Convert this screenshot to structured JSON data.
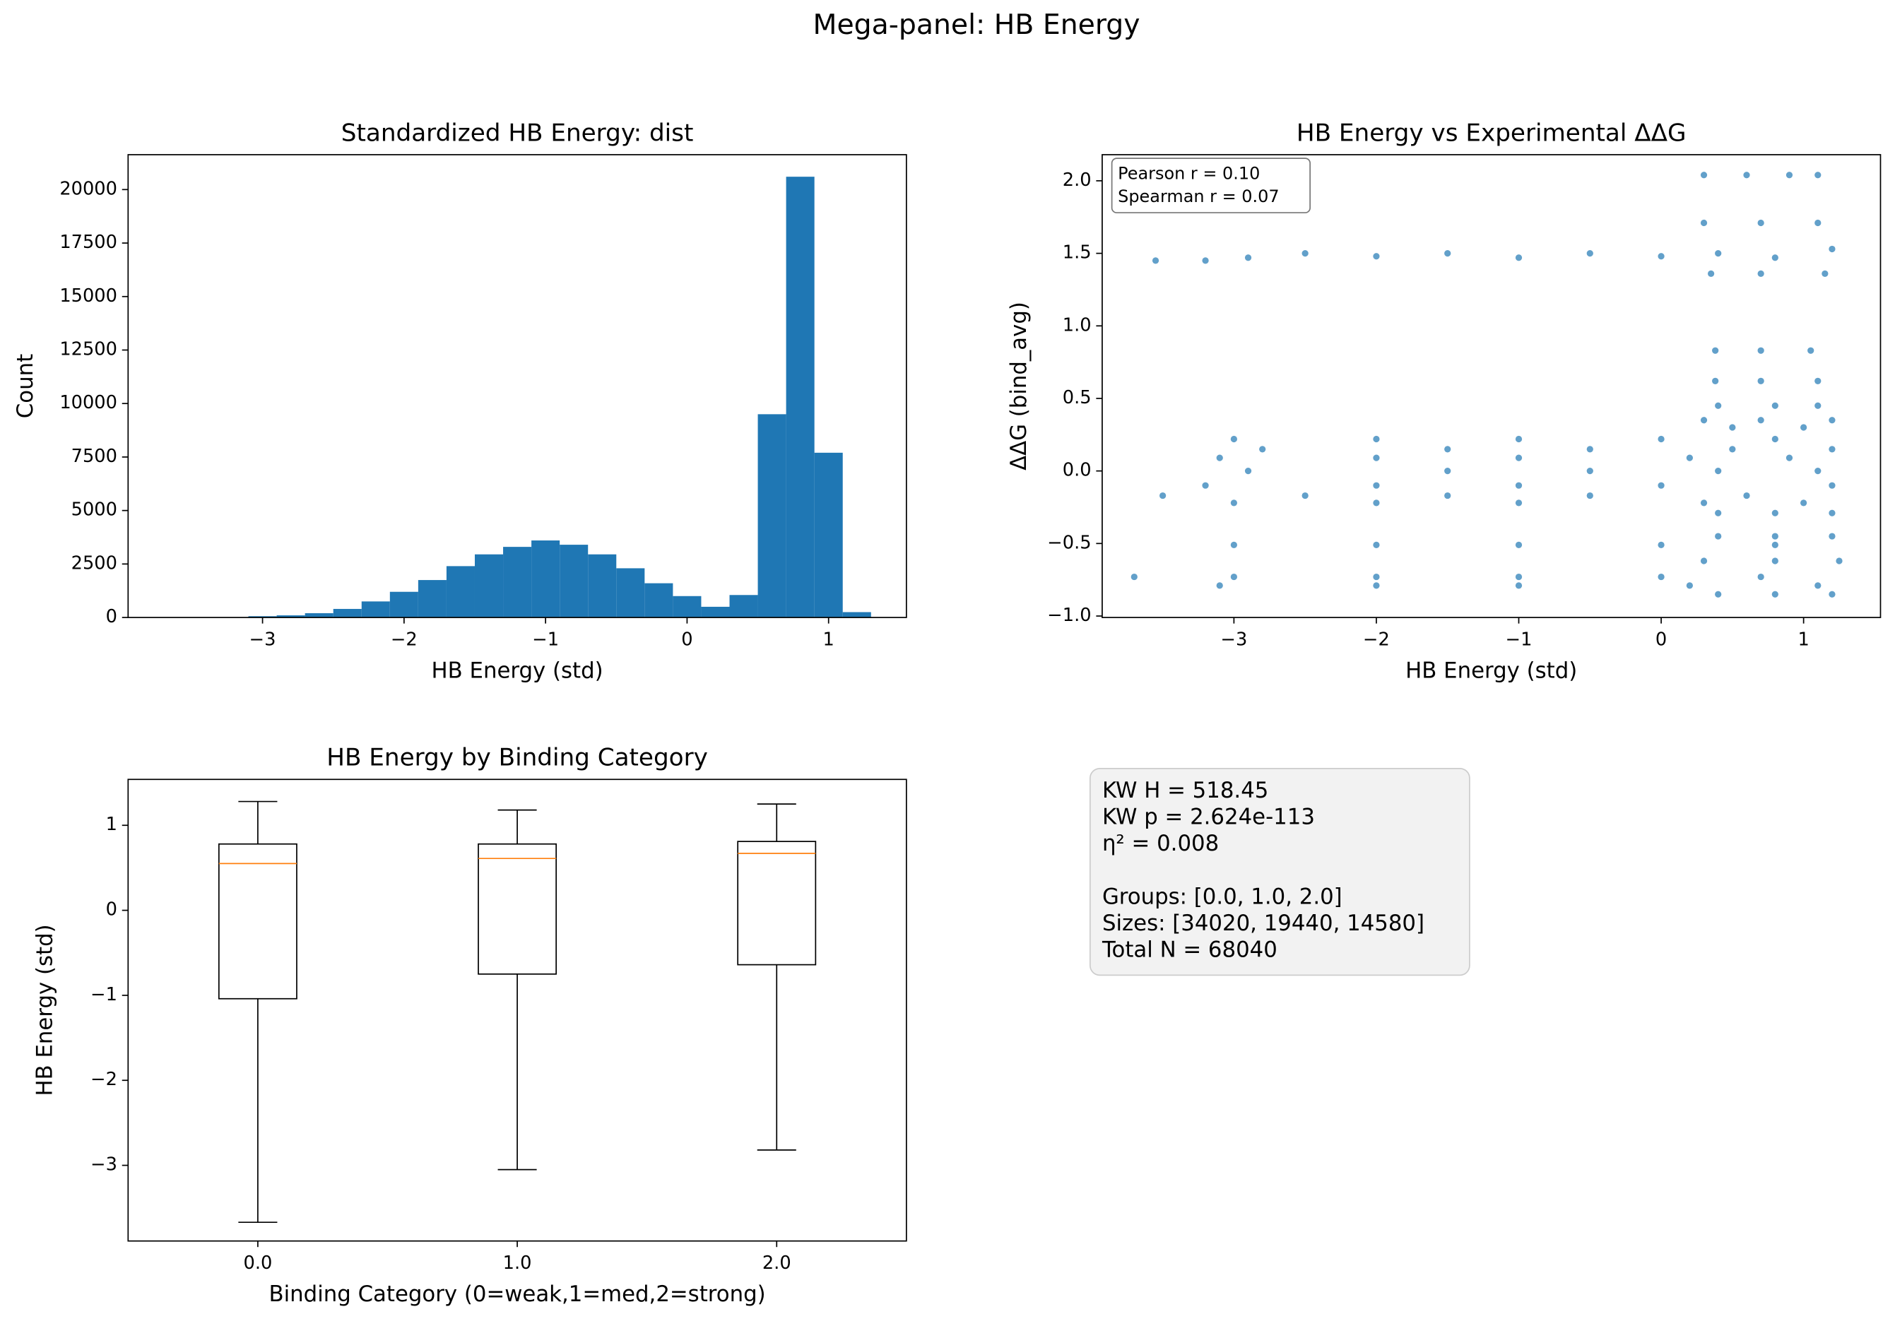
{
  "suptitle": "Mega-panel: HB Energy",
  "chart_data": [
    {
      "type": "histogram",
      "title": "Standardized HB Energy: dist",
      "x_label": "HB Energy (std)",
      "y_label": "Count",
      "color": "#1f77b4",
      "bins": [
        -3.7,
        -3.5,
        -3.3,
        -3.1,
        -2.9,
        -2.7,
        -2.5,
        -2.3,
        -2.1,
        -1.9,
        -1.7,
        -1.5,
        -1.3,
        -1.1,
        -0.9,
        -0.7,
        -0.5,
        -0.3,
        -0.1,
        0.1,
        0.3,
        0.5,
        0.7,
        0.9,
        1.1,
        1.3
      ],
      "values": [
        0,
        5,
        15,
        60,
        100,
        200,
        400,
        750,
        1200,
        1750,
        2400,
        2950,
        3300,
        3600,
        3400,
        2950,
        2300,
        1600,
        1000,
        500,
        1050,
        9500,
        20600,
        7700,
        250
      ],
      "xlim": [
        -3.95,
        1.55
      ],
      "ylim": [
        0,
        21630
      ],
      "xticks": [
        {
          "value": -3,
          "label": "−3"
        },
        {
          "value": -2,
          "label": "−2"
        },
        {
          "value": -1,
          "label": "−1"
        },
        0,
        1
      ],
      "yticks": [
        0,
        2500,
        5000,
        7500,
        10000,
        12500,
        15000,
        17500,
        20000
      ]
    },
    {
      "type": "scatter",
      "title": "HB Energy vs Experimental ΔΔG",
      "x_label": "HB Energy (std)",
      "y_label": "ΔΔG (bind_avg)",
      "color": "#1f77b4",
      "annotation_lines": [
        "Pearson r = 0.10",
        "Spearman r = 0.07"
      ],
      "x": [
        -3.55,
        -3.2,
        -2.9,
        -2.5,
        -2,
        -1.5,
        -1,
        -0.5,
        0,
        0.4,
        0.8,
        1.2,
        0.3,
        0.6,
        0.9,
        1.1,
        0.3,
        0.7,
        1.1,
        0.35,
        0.7,
        1.15,
        0.38,
        0.7,
        1.05,
        0.38,
        0.7,
        1.1,
        0.4,
        0.8,
        1.1,
        0.3,
        0.7,
        1.2,
        0.5,
        1.0,
        -3.0,
        -2.0,
        -1.0,
        0.0,
        0.8,
        -2.8,
        -1.5,
        -0.5,
        0.5,
        1.2,
        -3.1,
        -2.0,
        -1.0,
        0.2,
        0.9,
        -2.9,
        -1.5,
        -0.5,
        0.4,
        1.1,
        -3.2,
        -2.0,
        -1.0,
        0.0,
        1.2,
        -3.5,
        -2.5,
        -1.5,
        -0.5,
        0.6,
        -3.0,
        -2.0,
        -1.0,
        0.3,
        1.0,
        0.4,
        0.8,
        1.2,
        0.4,
        0.8,
        1.2,
        -3.0,
        -2.0,
        -1.0,
        0.0,
        0.8,
        0.3,
        0.8,
        1.25,
        -3.7,
        -3.0,
        -2.0,
        -1.0,
        0.0,
        0.7,
        -3.1,
        -2.0,
        -1.0,
        0.2,
        1.1,
        0.4,
        0.8,
        1.2
      ],
      "y": [
        1.45,
        1.45,
        1.47,
        1.5,
        1.48,
        1.5,
        1.47,
        1.5,
        1.48,
        1.5,
        1.47,
        1.53,
        2.04,
        2.04,
        2.04,
        2.04,
        1.71,
        1.71,
        1.71,
        1.36,
        1.36,
        1.36,
        0.83,
        0.83,
        0.83,
        0.62,
        0.62,
        0.62,
        0.45,
        0.45,
        0.45,
        0.35,
        0.35,
        0.35,
        0.3,
        0.3,
        0.22,
        0.22,
        0.22,
        0.22,
        0.22,
        0.15,
        0.15,
        0.15,
        0.15,
        0.15,
        0.09,
        0.09,
        0.09,
        0.09,
        0.09,
        0.0,
        0.0,
        0.0,
        0.0,
        0.0,
        -0.1,
        -0.1,
        -0.1,
        -0.1,
        -0.1,
        -0.17,
        -0.17,
        -0.17,
        -0.17,
        -0.17,
        -0.22,
        -0.22,
        -0.22,
        -0.22,
        -0.22,
        -0.29,
        -0.29,
        -0.29,
        -0.45,
        -0.45,
        -0.45,
        -0.51,
        -0.51,
        -0.51,
        -0.51,
        -0.51,
        -0.62,
        -0.62,
        -0.62,
        -0.73,
        -0.73,
        -0.73,
        -0.73,
        -0.73,
        -0.73,
        -0.79,
        -0.79,
        -0.79,
        -0.79,
        -0.79,
        -0.85,
        -0.85,
        -0.85
      ],
      "xlim": [
        -3.925,
        1.54
      ],
      "ylim": [
        -1.01,
        2.18
      ],
      "xticks": [
        {
          "value": -3,
          "label": "−3"
        },
        {
          "value": -2,
          "label": "−2"
        },
        {
          "value": -1,
          "label": "−1"
        },
        0,
        1
      ],
      "yticks": [
        {
          "value": -1,
          "label": "−1.0"
        },
        {
          "value": -0.5,
          "label": "−0.5"
        },
        {
          "value": 0,
          "label": "0.0"
        },
        {
          "value": 0.5,
          "label": "0.5"
        },
        {
          "value": 1,
          "label": "1.0"
        },
        {
          "value": 1.5,
          "label": "1.5"
        },
        {
          "value": 2,
          "label": "2.0"
        }
      ]
    },
    {
      "type": "box",
      "title": "HB Energy by Binding Category",
      "x_label": "Binding Category (0=weak,1=med,2=strong)",
      "y_label": "HB Energy (std)",
      "median_color": "#ff7f0e",
      "categories": [
        "0.0",
        "1.0",
        "2.0"
      ],
      "boxes": [
        {
          "whislo": -3.67,
          "q1": -1.04,
          "median": 0.55,
          "q3": 0.78,
          "whishi": 1.28
        },
        {
          "whislo": -3.05,
          "q1": -0.75,
          "median": 0.61,
          "q3": 0.78,
          "whishi": 1.18
        },
        {
          "whislo": -2.82,
          "q1": -0.64,
          "median": 0.67,
          "q3": 0.81,
          "whishi": 1.25
        }
      ],
      "ylim": [
        -3.89,
        1.54
      ],
      "yticks": [
        {
          "value": -3,
          "label": "−3"
        },
        {
          "value": -2,
          "label": "−2"
        },
        {
          "value": -1,
          "label": "−1"
        },
        0,
        1
      ]
    }
  ],
  "text_box": {
    "blocks": [
      [
        "KW H = 518.45",
        "KW p = 2.624e-113",
        "η² = 0.008"
      ],
      [
        "Groups: [0.0, 1.0, 2.0]",
        "Sizes:  [34020, 19440, 14580]",
        "Total N = 68040"
      ]
    ]
  }
}
